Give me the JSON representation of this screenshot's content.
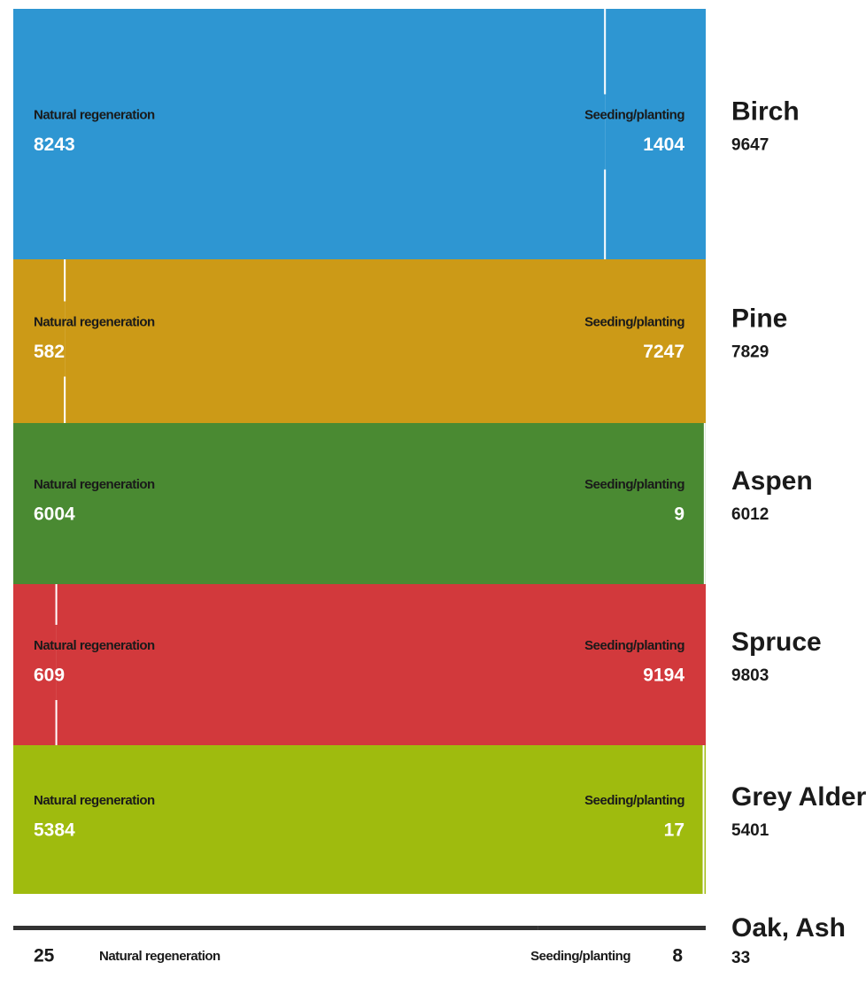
{
  "chart_data": {
    "type": "stacked-bar-100",
    "categories": [
      "Birch",
      "Pine",
      "Aspen",
      "Spruce",
      "Grey Alder",
      "Oak, Ash"
    ],
    "colors": [
      "#2e96d2",
      "#cc9a17",
      "#4a8a32",
      "#d2393c",
      "#9fbb0e",
      "#333333"
    ],
    "series": [
      {
        "name": "Natural regeneration",
        "values": [
          8243,
          582,
          6004,
          609,
          5384,
          25
        ]
      },
      {
        "name": "Seeding/planting",
        "values": [
          1404,
          7247,
          9,
          9194,
          17,
          8
        ]
      }
    ],
    "totals": [
      9647,
      7829,
      6012,
      9803,
      5401,
      33
    ]
  }
}
